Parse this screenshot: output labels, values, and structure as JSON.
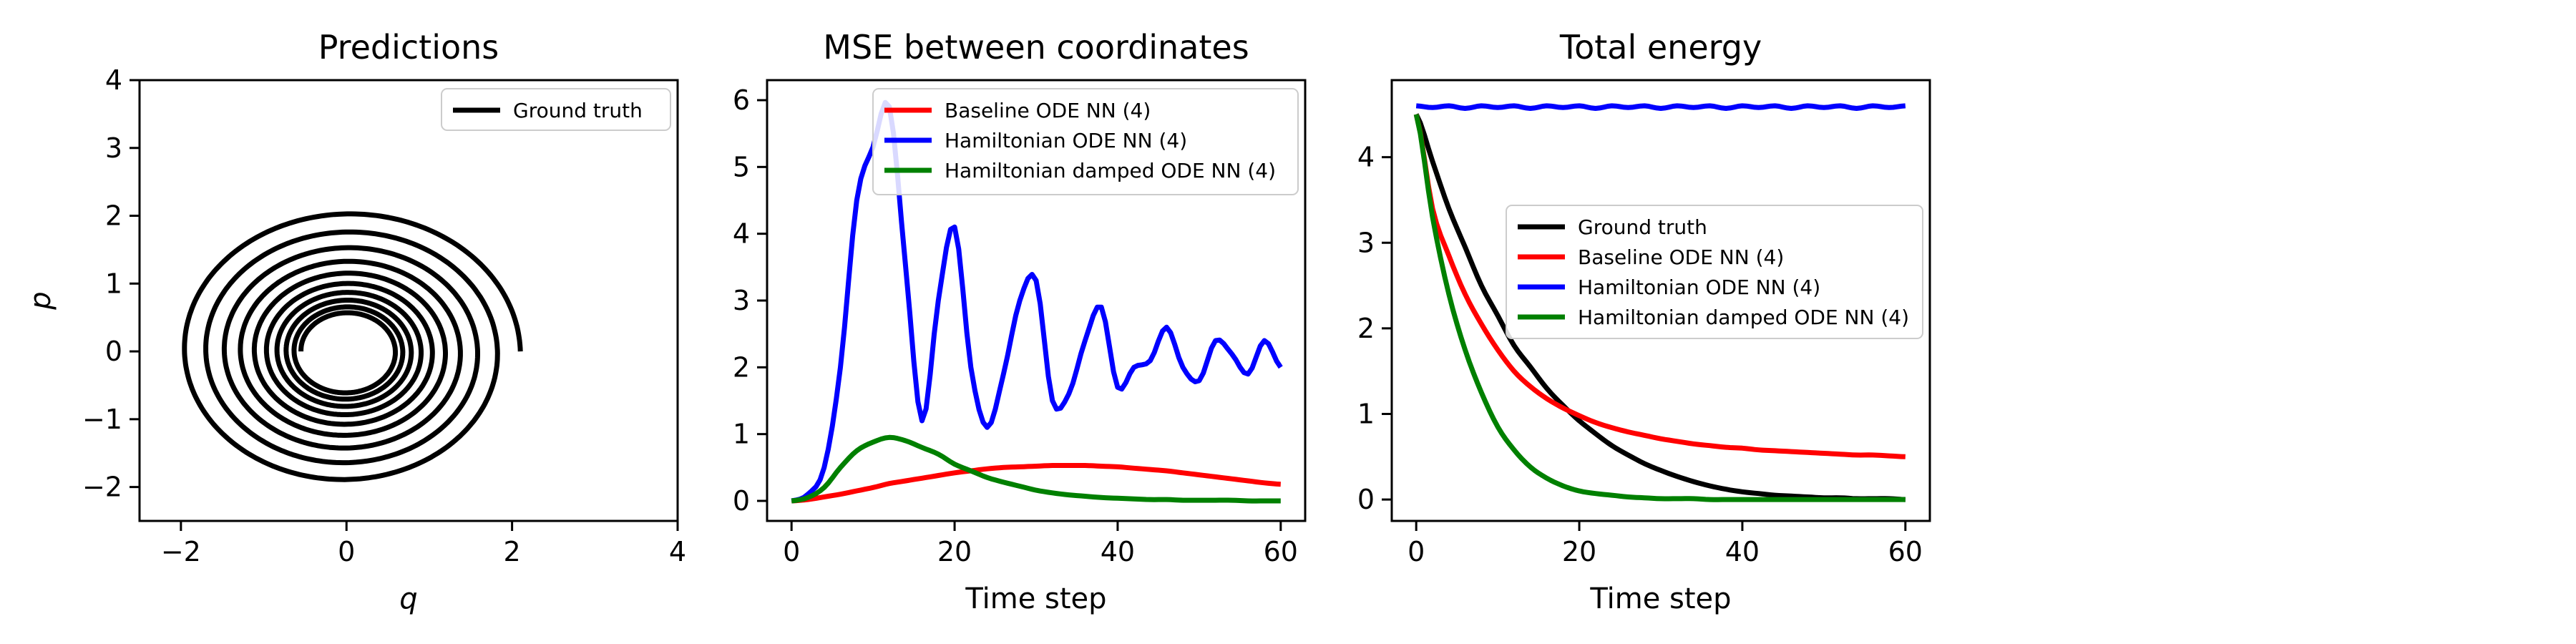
{
  "chart_data": [
    {
      "type": "line",
      "title": "Predictions",
      "xlabel": "q",
      "ylabel": "p",
      "xlim": [
        -2.5,
        4
      ],
      "ylim": [
        -2.5,
        4
      ],
      "xticks": [
        -2,
        0,
        2,
        4
      ],
      "yticks": [
        -2,
        -1,
        0,
        1,
        2,
        3,
        4
      ],
      "xtick_labels": [
        "−2",
        "0",
        "2",
        "4"
      ],
      "ytick_labels": [
        "−2",
        "−1",
        "0",
        "1",
        "2",
        "3",
        "4"
      ],
      "grid": false,
      "legend_position": "upper-right",
      "series": [
        {
          "name": "Ground truth",
          "color": "#000000",
          "kind": "damped-spiral",
          "start": [
            2.1,
            0.0
          ],
          "end_radius": 0.55,
          "turns": 9.5
        }
      ]
    },
    {
      "type": "line",
      "title": "MSE between coordinates",
      "xlabel": "Time step",
      "ylabel": "",
      "xlim": [
        -3,
        63
      ],
      "ylim": [
        -0.3,
        6.3
      ],
      "xticks": [
        0,
        20,
        40,
        60
      ],
      "yticks": [
        0,
        1,
        2,
        3,
        4,
        5,
        6
      ],
      "xtick_labels": [
        "0",
        "20",
        "40",
        "60"
      ],
      "ytick_labels": [
        "0",
        "1",
        "2",
        "3",
        "4",
        "5",
        "6"
      ],
      "grid": false,
      "legend_position": "upper-right",
      "x": [
        0,
        2,
        4,
        6,
        8,
        10,
        12,
        14,
        16,
        18,
        20,
        22,
        24,
        26,
        28,
        30,
        32,
        34,
        36,
        38,
        40,
        42,
        44,
        46,
        48,
        50,
        52,
        54,
        56,
        58,
        60
      ],
      "series": [
        {
          "name": "Baseline ODE NN (4)",
          "color": "#ff0000",
          "values": [
            0,
            0.02,
            0.06,
            0.1,
            0.15,
            0.2,
            0.26,
            0.3,
            0.34,
            0.38,
            0.42,
            0.45,
            0.48,
            0.5,
            0.51,
            0.52,
            0.53,
            0.53,
            0.53,
            0.52,
            0.51,
            0.49,
            0.47,
            0.45,
            0.42,
            0.39,
            0.36,
            0.33,
            0.3,
            0.27,
            0.25
          ]
        },
        {
          "name": "Hamiltonian ODE NN (4)",
          "color": "#0000ff",
          "values": [
            0,
            0.1,
            0.5,
            2.0,
            4.5,
            5.3,
            5.9,
            3.5,
            1.2,
            3.0,
            4.1,
            2.0,
            1.1,
            1.9,
            3.0,
            3.3,
            1.5,
            1.6,
            2.4,
            2.9,
            1.7,
            2.0,
            2.1,
            2.6,
            2.0,
            1.8,
            2.4,
            2.2,
            1.9,
            2.4,
            2.0
          ]
        },
        {
          "name": "Hamiltonian damped ODE NN (4)",
          "color": "#008000",
          "values": [
            0,
            0.05,
            0.2,
            0.5,
            0.75,
            0.88,
            0.95,
            0.9,
            0.8,
            0.7,
            0.55,
            0.45,
            0.35,
            0.28,
            0.22,
            0.16,
            0.12,
            0.09,
            0.07,
            0.05,
            0.04,
            0.03,
            0.02,
            0.02,
            0.01,
            0.01,
            0.01,
            0.01,
            0.0,
            0.0,
            0.0
          ]
        }
      ]
    },
    {
      "type": "line",
      "title": "Total energy",
      "xlabel": "Time step",
      "ylabel": "",
      "xlim": [
        -3,
        63
      ],
      "ylim": [
        -0.25,
        4.9
      ],
      "xticks": [
        0,
        20,
        40,
        60
      ],
      "yticks": [
        0,
        1,
        2,
        3,
        4
      ],
      "xtick_labels": [
        "0",
        "20",
        "40",
        "60"
      ],
      "ytick_labels": [
        "0",
        "1",
        "2",
        "3",
        "4"
      ],
      "grid": false,
      "legend_position": "center-right",
      "x": [
        0,
        2,
        4,
        6,
        8,
        10,
        12,
        14,
        16,
        18,
        20,
        22,
        24,
        26,
        28,
        30,
        32,
        34,
        36,
        38,
        40,
        42,
        44,
        46,
        48,
        50,
        52,
        54,
        56,
        58,
        60
      ],
      "series": [
        {
          "name": "Ground truth",
          "color": "#000000",
          "values": [
            4.5,
            3.95,
            3.4,
            2.95,
            2.5,
            2.15,
            1.8,
            1.55,
            1.3,
            1.1,
            0.92,
            0.77,
            0.63,
            0.52,
            0.42,
            0.34,
            0.27,
            0.21,
            0.16,
            0.12,
            0.09,
            0.07,
            0.05,
            0.04,
            0.03,
            0.02,
            0.02,
            0.01,
            0.01,
            0.01,
            0.0
          ]
        },
        {
          "name": "Baseline ODE NN (4)",
          "color": "#ff0000",
          "values": [
            4.5,
            3.4,
            2.85,
            2.4,
            2.05,
            1.75,
            1.5,
            1.32,
            1.18,
            1.07,
            0.98,
            0.9,
            0.84,
            0.79,
            0.75,
            0.71,
            0.68,
            0.65,
            0.63,
            0.61,
            0.6,
            0.58,
            0.57,
            0.56,
            0.55,
            0.54,
            0.53,
            0.52,
            0.52,
            0.51,
            0.5
          ]
        },
        {
          "name": "Hamiltonian ODE NN (4)",
          "color": "#0000ff",
          "values": [
            4.6,
            4.58,
            4.6,
            4.57,
            4.6,
            4.58,
            4.6,
            4.57,
            4.6,
            4.58,
            4.6,
            4.57,
            4.6,
            4.58,
            4.6,
            4.57,
            4.6,
            4.58,
            4.6,
            4.57,
            4.6,
            4.58,
            4.6,
            4.57,
            4.6,
            4.58,
            4.6,
            4.57,
            4.6,
            4.58,
            4.6
          ]
        },
        {
          "name": "Hamiltonian damped ODE NN (4)",
          "color": "#008000",
          "values": [
            4.5,
            3.3,
            2.4,
            1.75,
            1.25,
            0.85,
            0.58,
            0.38,
            0.25,
            0.16,
            0.1,
            0.07,
            0.05,
            0.03,
            0.02,
            0.01,
            0.01,
            0.01,
            0.0,
            0.0,
            0.0,
            0.0,
            0.0,
            0.0,
            0.0,
            0.0,
            0.0,
            0.0,
            0.0,
            0.0,
            0.0
          ]
        }
      ]
    }
  ]
}
